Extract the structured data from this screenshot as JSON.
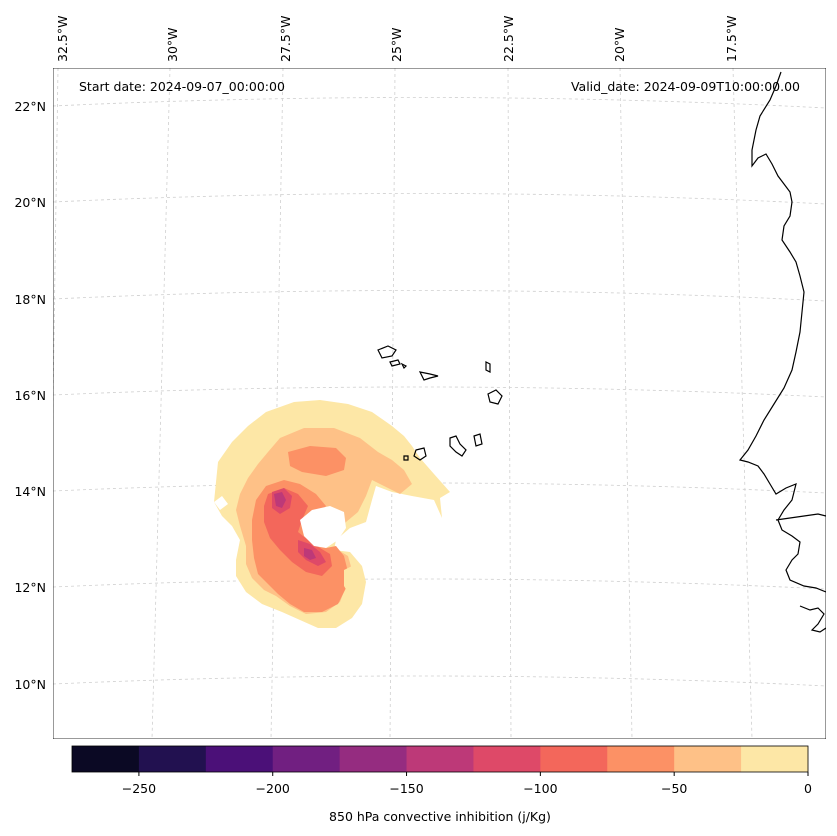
{
  "map": {
    "start_date_label": "Start date: 2024-09-07_00:00:00",
    "valid_date_label": "Valid_date: 2024-09-09T10:00:00.00",
    "longitude_labels": [
      "32.5°W",
      "30°W",
      "27.5°W",
      "25°W",
      "22.5°W",
      "20°W",
      "17.5°W"
    ],
    "latitude_labels": [
      "22°N",
      "20°N",
      "18°N",
      "16°N",
      "14°N",
      "12°N",
      "10°N"
    ],
    "gridlines": true,
    "projection": "lambert-conformal"
  },
  "colorbar": {
    "label": "850 hPa convective inhibition (j/Kg)",
    "tick_labels": [
      "−250",
      "−200",
      "−150",
      "−100",
      "−50",
      "0"
    ],
    "min": -275,
    "max": 0,
    "step": 25,
    "colors": [
      "#0b0924",
      "#221150",
      "#4b1078",
      "#711f81",
      "#952c80",
      "#bd3978",
      "#de4968",
      "#f3675b",
      "#fc9165",
      "#fec187",
      "#fde7a6"
    ]
  },
  "contour_levels": [
    {
      "level": "-25 to 0",
      "color": "#fde7a6"
    },
    {
      "level": "-50 to -25",
      "color": "#fec187"
    },
    {
      "level": "-75 to -50",
      "color": "#fc9165"
    },
    {
      "level": "-100 to -75",
      "color": "#f3675b"
    },
    {
      "level": "-125 to -100",
      "color": "#de4968"
    },
    {
      "level": "-150 to -125",
      "color": "#bd3978"
    }
  ]
}
